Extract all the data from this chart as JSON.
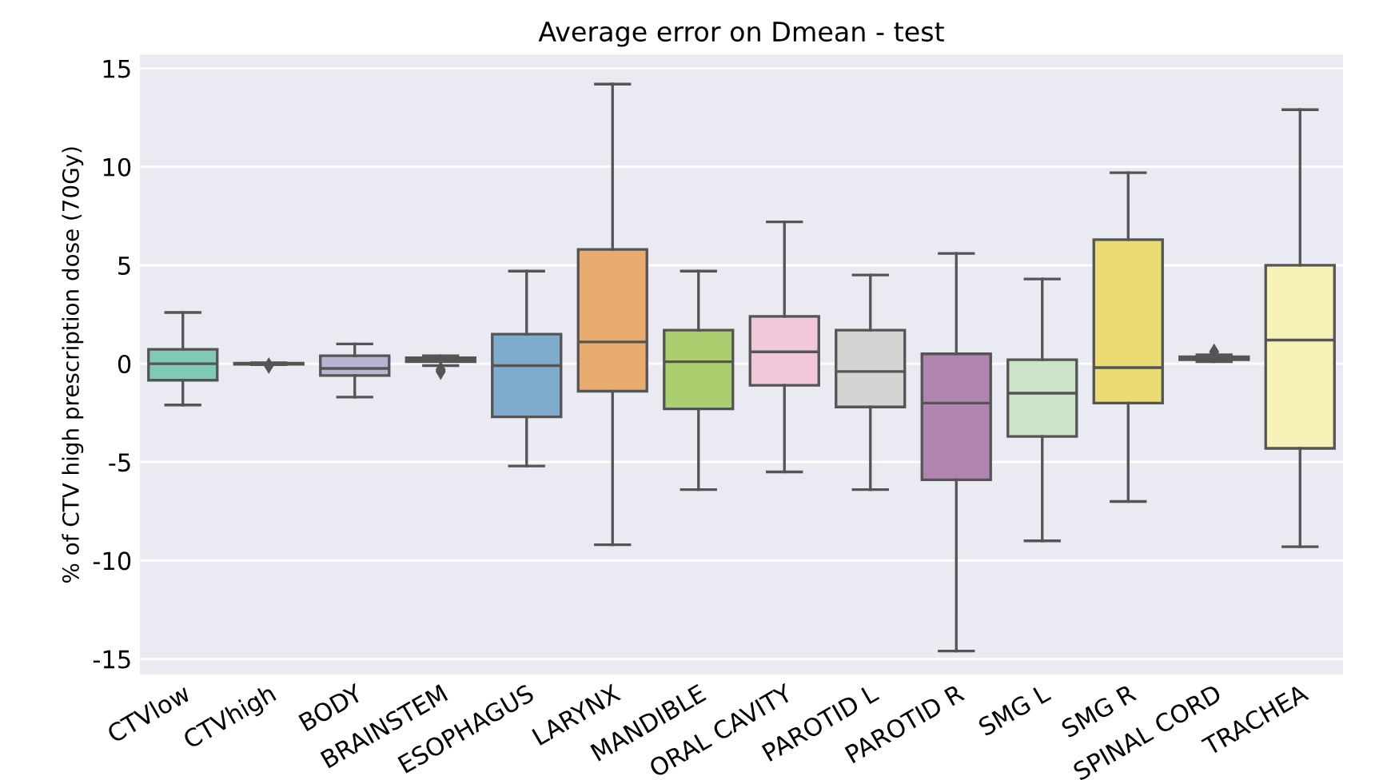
{
  "chart_data": {
    "type": "box",
    "title": "Average error on Dmean - test",
    "ylabel": "% of CTV high prescription dose (70Gy)",
    "categories": [
      "CTVlow",
      "CTVhigh",
      "BODY",
      "BRAINSTEM",
      "ESOPHAGUS",
      "LARYNX",
      "MANDIBLE",
      "ORAL CAVITY",
      "PAROTID L",
      "PAROTID R",
      "SMG L",
      "SMG R",
      "SPINAL CORD",
      "TRACHEA"
    ],
    "colors": [
      "#7fc9b5",
      "#e6e6a8",
      "#b9b4d2",
      "#e08c7a",
      "#7faccc",
      "#e8ad6e",
      "#abcf6e",
      "#f1c8da",
      "#d4d4d4",
      "#b284b0",
      "#cbe3c6",
      "#ebdb74",
      "#e0dcb0",
      "#f6f2b6"
    ],
    "boxes": [
      {
        "low": -2.1,
        "q1": -0.84,
        "median": 0,
        "q3": 0.73,
        "high": 2.6
      },
      {
        "low": -0.05,
        "q1": -0.03,
        "median": 0,
        "q3": 0.03,
        "high": 0.05,
        "outliers": [
          -0.1
        ]
      },
      {
        "low": -1.7,
        "q1": -0.6,
        "median": -0.24,
        "q3": 0.4,
        "high": 1.0
      },
      {
        "low": -0.1,
        "q1": 0.1,
        "median": 0.2,
        "q3": 0.3,
        "high": 0.4,
        "outliers": [
          -0.3,
          -0.4
        ]
      },
      {
        "low": -5.2,
        "q1": -2.7,
        "median": -0.1,
        "q3": 1.5,
        "high": 4.7
      },
      {
        "low": -9.2,
        "q1": -1.4,
        "median": 1.1,
        "q3": 5.8,
        "high": 14.2
      },
      {
        "low": -6.4,
        "q1": -2.3,
        "median": 0.1,
        "q3": 1.7,
        "high": 4.7
      },
      {
        "low": -5.5,
        "q1": -1.1,
        "median": 0.6,
        "q3": 2.4,
        "high": 7.2
      },
      {
        "low": -6.4,
        "q1": -2.2,
        "median": -0.4,
        "q3": 1.7,
        "high": 4.5
      },
      {
        "low": -14.6,
        "q1": -5.9,
        "median": -2.0,
        "q3": 0.5,
        "high": 5.6
      },
      {
        "low": -9.0,
        "q1": -3.7,
        "median": -1.5,
        "q3": 0.2,
        "high": 4.3
      },
      {
        "low": -7.0,
        "q1": -2.0,
        "median": -0.2,
        "q3": 6.3,
        "high": 9.7
      },
      {
        "low": 0.1,
        "q1": 0.2,
        "median": 0.3,
        "q3": 0.35,
        "high": 0.45,
        "outliers": [
          0.6
        ]
      },
      {
        "low": -9.3,
        "q1": -4.3,
        "median": 1.2,
        "q3": 5.0,
        "high": 12.9
      }
    ],
    "ylim": [
      -15.8,
      15.7
    ],
    "yticks": [
      -15,
      -10,
      -5,
      0,
      5,
      10,
      15
    ],
    "grid": "y"
  }
}
